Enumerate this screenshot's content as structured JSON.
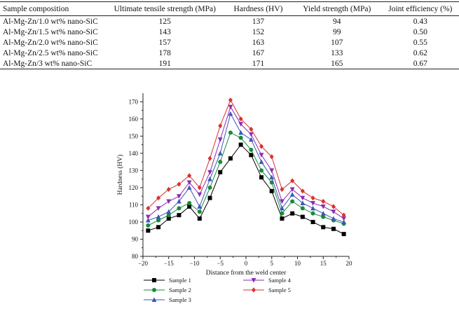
{
  "table": {
    "headers": [
      "Sample composition",
      "Ultimate tensile strength (MPa)",
      "Hardness (HV)",
      "Yield strength (MPa)",
      "Joint efficiency (%)"
    ],
    "rows": [
      [
        "Al-Mg-Zn/1.0 wt% nano-SiC",
        "125",
        "137",
        "94",
        "0.43"
      ],
      [
        "Al-Mg-Zn/1.5 wt% nano-SiC",
        "143",
        "152",
        "99",
        "0.50"
      ],
      [
        "Al-Mg-Zn/2.0 wt% nano-SiC",
        "157",
        "163",
        "107",
        "0.55"
      ],
      [
        "Al-Mg-Zn/2.5 wt% nano-SiC",
        "178",
        "167",
        "133",
        "0.62"
      ],
      [
        "Al-Mg-Zn/3 wt% nano-SiC",
        "191",
        "171",
        "165",
        "0.67"
      ]
    ]
  },
  "chart_data": {
    "type": "line",
    "xlabel": "Distance from the weld center",
    "ylabel": "Hardness (HV)",
    "xlim": [
      -20,
      20
    ],
    "ylim": [
      80,
      175
    ],
    "xticks": [
      -20,
      -15,
      -10,
      -5,
      0,
      5,
      10,
      15,
      20
    ],
    "yticks": [
      80,
      90,
      100,
      110,
      120,
      130,
      140,
      150,
      160,
      170
    ],
    "x": [
      -19,
      -17,
      -15,
      -13,
      -11,
      -9,
      -7,
      -5,
      -3,
      -1,
      1,
      3,
      5,
      7,
      9,
      11,
      13,
      15,
      17,
      19
    ],
    "legend_position": "below",
    "series": [
      {
        "name": "Sample 1",
        "color": "#000000",
        "marker": "square",
        "values": [
          95,
          97,
          102,
          104,
          109,
          102,
          114,
          129,
          137,
          145,
          139,
          126,
          118,
          102,
          105,
          103,
          100,
          97,
          96,
          93
        ]
      },
      {
        "name": "Sample 2",
        "color": "#1a8a3a",
        "marker": "circle",
        "values": [
          98,
          101,
          104,
          108,
          111,
          106,
          120,
          135,
          152,
          149,
          142,
          130,
          123,
          105,
          112,
          108,
          105,
          103,
          101,
          99
        ]
      },
      {
        "name": "Sample 3",
        "color": "#3c56b8",
        "marker": "triangle-up",
        "values": [
          101,
          103,
          106,
          112,
          120,
          109,
          125,
          140,
          163,
          152,
          148,
          135,
          126,
          108,
          116,
          111,
          108,
          105,
          102,
          100
        ]
      },
      {
        "name": "Sample 4",
        "color": "#8a2bb5",
        "marker": "triangle-down",
        "values": [
          103,
          108,
          112,
          115,
          123,
          116,
          129,
          148,
          167,
          157,
          151,
          139,
          130,
          112,
          119,
          114,
          111,
          109,
          106,
          102
        ]
      },
      {
        "name": "Sample 5",
        "color": "#d8322e",
        "marker": "diamond",
        "values": [
          108,
          114,
          119,
          122,
          127,
          120,
          137,
          156,
          171,
          160,
          154,
          144,
          138,
          119,
          124,
          118,
          114,
          112,
          109,
          104
        ]
      }
    ]
  }
}
